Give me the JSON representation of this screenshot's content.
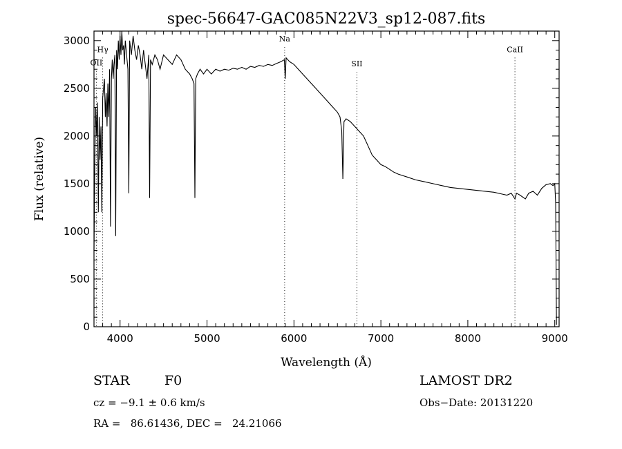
{
  "chart_data": {
    "type": "line",
    "title": "spec-56647-GAC085N22V3_sp12-087.fits",
    "xlabel": "Wavelength (Å)",
    "ylabel": "Flux (relative)",
    "xlim": [
      3700,
      9050
    ],
    "ylim": [
      0,
      3100
    ],
    "x_ticks": [
      4000,
      5000,
      6000,
      7000,
      8000,
      9000
    ],
    "y_ticks": [
      0,
      500,
      1000,
      1500,
      2000,
      2500,
      3000
    ],
    "line_color": "#000000",
    "series": [
      {
        "x": [
          3700,
          3710,
          3720,
          3730,
          3740,
          3750,
          3760,
          3770,
          3780,
          3790,
          3800,
          3810,
          3820,
          3830,
          3840,
          3850,
          3860,
          3870,
          3880,
          3890,
          3900,
          3910,
          3920,
          3930,
          3940,
          3950,
          3960,
          3970,
          3980,
          3990,
          4000,
          4010,
          4020,
          4030,
          4040,
          4050,
          4060,
          4080,
          4090,
          4101,
          4110,
          4130,
          4150,
          4170,
          4190,
          4210,
          4230,
          4250,
          4270,
          4290,
          4310,
          4330,
          4340,
          4350,
          4370,
          4400,
          4430,
          4460,
          4500,
          4550,
          4600,
          4650,
          4700,
          4750,
          4800,
          4830,
          4850,
          4861,
          4870,
          4890,
          4920,
          4960,
          5000,
          5050,
          5100,
          5150,
          5200,
          5250,
          5300,
          5350,
          5400,
          5450,
          5500,
          5550,
          5600,
          5650,
          5700,
          5750,
          5800,
          5850,
          5890,
          5900,
          5910,
          5950,
          6000,
          6050,
          6100,
          6150,
          6200,
          6250,
          6300,
          6350,
          6400,
          6450,
          6500,
          6530,
          6550,
          6563,
          6575,
          6600,
          6650,
          6700,
          6750,
          6800,
          6850,
          6900,
          6950,
          7000,
          7050,
          7100,
          7150,
          7200,
          7300,
          7400,
          7500,
          7600,
          7700,
          7800,
          7900,
          8000,
          8100,
          8200,
          8300,
          8400,
          8450,
          8500,
          8542,
          8560,
          8600,
          8662,
          8700,
          8750,
          8800,
          8850,
          8900,
          8950,
          8980,
          9000,
          9010,
          9020
        ],
        "y": [
          800,
          1800,
          2300,
          2000,
          2350,
          1200,
          2200,
          1750,
          2100,
          1200,
          2400,
          2500,
          2600,
          2200,
          2450,
          2100,
          2550,
          2200,
          2700,
          1050,
          2600,
          2800,
          2600,
          2750,
          2850,
          950,
          2900,
          2700,
          3000,
          2800,
          3050,
          2850,
          3100,
          2900,
          2950,
          2750,
          3000,
          2800,
          2700,
          1400,
          3000,
          2850,
          3050,
          2900,
          2800,
          2950,
          2850,
          2700,
          2900,
          2750,
          2600,
          2850,
          1350,
          2800,
          2750,
          2850,
          2800,
          2700,
          2850,
          2800,
          2750,
          2850,
          2800,
          2700,
          2650,
          2600,
          2550,
          1350,
          2600,
          2650,
          2700,
          2650,
          2700,
          2650,
          2700,
          2680,
          2700,
          2690,
          2710,
          2700,
          2720,
          2700,
          2730,
          2720,
          2740,
          2730,
          2750,
          2740,
          2760,
          2780,
          2800,
          2600,
          2820,
          2780,
          2750,
          2700,
          2650,
          2600,
          2550,
          2500,
          2450,
          2400,
          2350,
          2300,
          2250,
          2200,
          2050,
          1550,
          2150,
          2180,
          2150,
          2100,
          2050,
          2000,
          1900,
          1800,
          1750,
          1700,
          1680,
          1650,
          1620,
          1600,
          1570,
          1540,
          1520,
          1500,
          1480,
          1460,
          1450,
          1440,
          1430,
          1420,
          1410,
          1390,
          1380,
          1400,
          1340,
          1400,
          1380,
          1340,
          1400,
          1420,
          1380,
          1450,
          1490,
          1500,
          1480,
          1500,
          1300,
          20
        ]
      }
    ],
    "line_markers": [
      {
        "label": "OII",
        "x": 3727,
        "label_y": 2740
      },
      {
        "label": "Hγ",
        "x": 3800,
        "label_y": 2880
      },
      {
        "label": "Na",
        "x": 5893,
        "label_y": 2990
      },
      {
        "label": "SII",
        "x": 6724,
        "label_y": 2730
      },
      {
        "label": "CaII",
        "x": 8542,
        "label_y": 2880
      }
    ]
  },
  "info": {
    "object_class": "STAR",
    "subclass": "F0",
    "survey": "LAMOST DR2",
    "cz": "cz = −9.1 ± 0.6 km/s",
    "obs_date": "Obs−Date: 20131220",
    "coords": "RA =   86.61436, DEC =   24.21066"
  }
}
